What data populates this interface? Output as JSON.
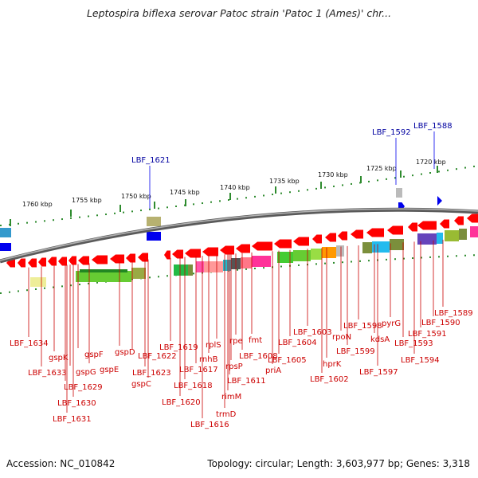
{
  "title": "Leptospira biflexa serovar Patoc strain 'Patoc 1 (Ames)' chr...",
  "footer": {
    "accession": "Accession: NC_010842",
    "summary": "Topology: circular; Length: 3,603,977 bp; Genes: 3,318"
  },
  "colors": {
    "gene_red": "#ff0000",
    "label_red": "#cc0000",
    "feature_blue": "#0000ee",
    "backbone_gray": "#7d7d7d",
    "scale_green": "#2e8b2e"
  },
  "scale_labels": [
    "1760 kbp",
    "1755 kbp",
    "1750 kbp",
    "1745 kbp",
    "1740 kbp",
    "1735 kbp",
    "1730 kbp",
    "1725 kbp",
    "1720 kbp"
  ],
  "feature_labels": [
    "LBF_1621",
    "LBF_1592",
    "LBF_1588"
  ],
  "gene_labels": [
    "LBF_1634",
    "gspK",
    "LBF_1633",
    "gspG",
    "gspF",
    "LBF_1629",
    "gspE",
    "LBF_1630",
    "LBF_1631",
    "gspD",
    "LBF_1622",
    "LBF_1623",
    "gspC",
    "LBF_1619",
    "rplS",
    "rnhB",
    "LBF_1617",
    "LBF_1618",
    "LBF_1620",
    "rpe",
    "fmt",
    "LBF_1608",
    "rpsP",
    "LBF_1611",
    "rimM",
    "trmD",
    "LBF_1616",
    "LBF_1605",
    "priA",
    "LBF_1604",
    "LBF_1603",
    "hprK",
    "LBF_1602",
    "rpoN",
    "LBF_1599",
    "LBF_1598",
    "kdsA",
    "pyrG",
    "LBF_1597",
    "LBF_1593",
    "LBF_1594",
    "LBF_1591",
    "LBF_1590",
    "LBF_1589"
  ]
}
